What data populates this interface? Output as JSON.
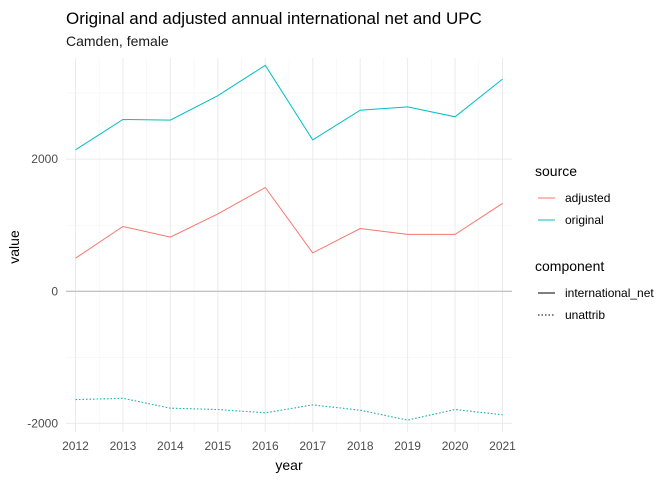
{
  "chart_data": {
    "type": "line",
    "title": "Original and adjusted annual international net and UPC",
    "subtitle": "Camden, female",
    "xlabel": "year",
    "ylabel": "value",
    "x": [
      2012,
      2013,
      2014,
      2015,
      2016,
      2017,
      2018,
      2019,
      2020,
      2021
    ],
    "xlim": [
      2011.8,
      2021.2
    ],
    "ylim": [
      -2130,
      3530
    ],
    "y_ticks": [
      -2000,
      0,
      2000
    ],
    "grid": true,
    "reference_line": 0,
    "legend_position": "right",
    "legends": [
      {
        "title": "source",
        "entries": [
          {
            "label": "adjusted",
            "color": "#F8766D",
            "style": "solid"
          },
          {
            "label": "original",
            "color": "#00BFC4",
            "style": "solid"
          }
        ]
      },
      {
        "title": "component",
        "entries": [
          {
            "label": "international_net",
            "color": "#000000",
            "style": "solid"
          },
          {
            "label": "unattrib",
            "color": "#000000",
            "style": "dotted"
          }
        ]
      }
    ],
    "series": [
      {
        "source": "adjusted",
        "component": "international_net",
        "color": "#F8766D",
        "style": "solid",
        "values": [
          500,
          980,
          820,
          1170,
          1570,
          580,
          950,
          860,
          860,
          1330
        ]
      },
      {
        "source": "original",
        "component": "international_net",
        "color": "#00BFC4",
        "style": "solid",
        "values": [
          2140,
          2600,
          2590,
          2960,
          3420,
          2290,
          2740,
          2790,
          2640,
          3210
        ]
      },
      {
        "source": "adjusted",
        "component": "unattrib",
        "color": "#F8766D",
        "style": "dotted",
        "values": [
          -1640,
          -1620,
          -1770,
          -1790,
          -1840,
          -1720,
          -1800,
          -1950,
          -1790,
          -1870
        ]
      },
      {
        "source": "original",
        "component": "unattrib",
        "color": "#00BFC4",
        "style": "dotted",
        "values": [
          -1640,
          -1620,
          -1770,
          -1790,
          -1840,
          -1720,
          -1800,
          -1950,
          -1790,
          -1870
        ]
      }
    ]
  }
}
